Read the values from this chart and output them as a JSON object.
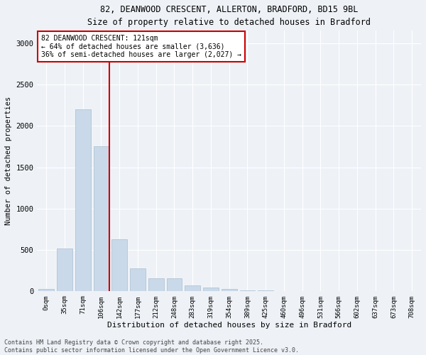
{
  "title_line1": "82, DEANWOOD CRESCENT, ALLERTON, BRADFORD, BD15 9BL",
  "title_line2": "Size of property relative to detached houses in Bradford",
  "xlabel": "Distribution of detached houses by size in Bradford",
  "ylabel": "Number of detached properties",
  "bar_color": "#c9d9ea",
  "bar_edge_color": "#a8bece",
  "bin_labels": [
    "0sqm",
    "35sqm",
    "71sqm",
    "106sqm",
    "142sqm",
    "177sqm",
    "212sqm",
    "248sqm",
    "283sqm",
    "319sqm",
    "354sqm",
    "389sqm",
    "425sqm",
    "460sqm",
    "496sqm",
    "531sqm",
    "566sqm",
    "602sqm",
    "637sqm",
    "673sqm",
    "708sqm"
  ],
  "bar_values": [
    25,
    520,
    2200,
    1750,
    630,
    280,
    155,
    155,
    75,
    45,
    25,
    15,
    10,
    5,
    3,
    2,
    1,
    0,
    0,
    0,
    0
  ],
  "ylim": [
    0,
    3150
  ],
  "yticks": [
    0,
    500,
    1000,
    1500,
    2000,
    2500,
    3000
  ],
  "vline_pos": 3.457,
  "annotation_title": "82 DEANWOOD CRESCENT: 121sqm",
  "annotation_line1": "← 64% of detached houses are smaller (3,636)",
  "annotation_line2": "36% of semi-detached houses are larger (2,027) →",
  "annotation_box_color": "#ffffff",
  "annotation_box_edge": "#cc0000",
  "vline_color": "#cc0000",
  "background_color": "#eef2f7",
  "grid_color": "#ffffff",
  "footer_line1": "Contains HM Land Registry data © Crown copyright and database right 2025.",
  "footer_line2": "Contains public sector information licensed under the Open Government Licence v3.0."
}
